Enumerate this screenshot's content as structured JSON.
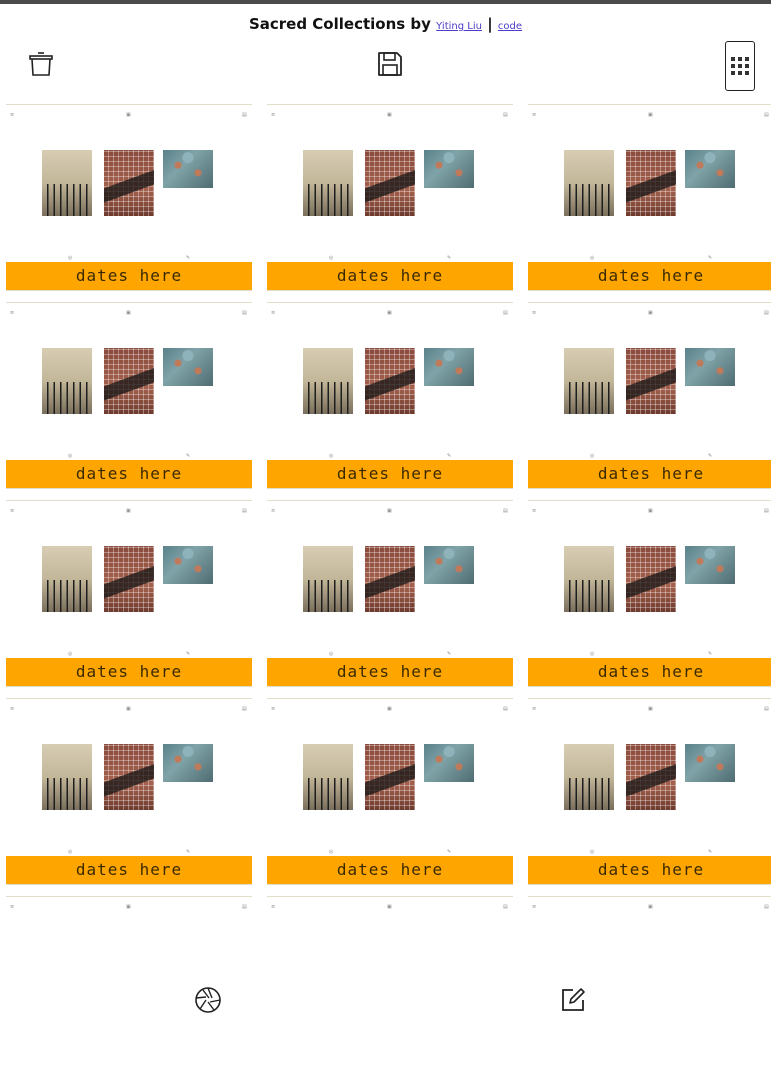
{
  "header": {
    "title": "Sacred Collections by",
    "author_link": "Yiting Liu",
    "separator": "|",
    "code_link": "code"
  },
  "toolbar": {
    "delete_icon": "trash-icon",
    "save_icon": "save-icon",
    "grid_icon": "grid-icon"
  },
  "cards": [
    {
      "dates_label": "dates here"
    },
    {
      "dates_label": "dates here"
    },
    {
      "dates_label": "dates here"
    },
    {
      "dates_label": "dates here"
    },
    {
      "dates_label": "dates here"
    },
    {
      "dates_label": "dates here"
    },
    {
      "dates_label": "dates here"
    },
    {
      "dates_label": "dates here"
    },
    {
      "dates_label": "dates here"
    },
    {
      "dates_label": "dates here"
    },
    {
      "dates_label": "dates here"
    },
    {
      "dates_label": "dates here"
    },
    {
      "dates_label": ""
    },
    {
      "dates_label": ""
    },
    {
      "dates_label": ""
    }
  ],
  "bottom": {
    "camera_icon": "camera-aperture-icon",
    "edit_icon": "edit-icon"
  },
  "colors": {
    "dates_bar": "#ffa500",
    "link": "#4b3cc9",
    "background": "#ffffff"
  }
}
